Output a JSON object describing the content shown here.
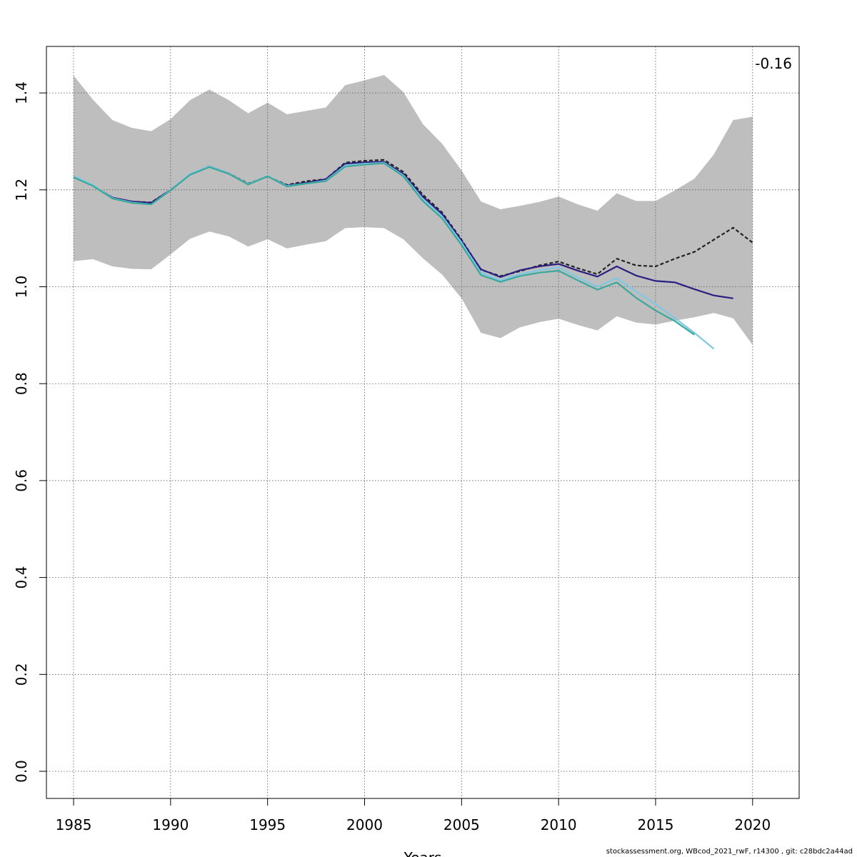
{
  "chart_data": {
    "type": "line",
    "title": "",
    "xlabel": "Years",
    "ylabel": "",
    "xlim": [
      1983.6,
      2022.4
    ],
    "ylim": [
      -0.056,
      1.496
    ],
    "x_ticks": [
      1985,
      1990,
      1995,
      2000,
      2005,
      2010,
      2015,
      2020
    ],
    "y_ticks": [
      0.0,
      0.2,
      0.4,
      0.6,
      0.8,
      1.0,
      1.2,
      1.4
    ],
    "grid": true,
    "annotation": "-0.16",
    "confidence_band": {
      "x": [
        1985,
        1986,
        1987,
        1988,
        1989,
        1990,
        1991,
        1992,
        1993,
        1994,
        1995,
        1996,
        1997,
        1998,
        1999,
        2000,
        2001,
        2002,
        2003,
        2004,
        2005,
        2006,
        2007,
        2008,
        2009,
        2010,
        2011,
        2012,
        2013,
        2014,
        2015,
        2016,
        2017,
        2018,
        2019,
        2020
      ],
      "upper": [
        1.436,
        1.386,
        1.344,
        1.328,
        1.321,
        1.346,
        1.385,
        1.407,
        1.385,
        1.358,
        1.38,
        1.356,
        1.363,
        1.37,
        1.416,
        1.426,
        1.437,
        1.402,
        1.336,
        1.295,
        1.24,
        1.176,
        1.16,
        1.167,
        1.175,
        1.186,
        1.17,
        1.157,
        1.193,
        1.177,
        1.177,
        1.199,
        1.223,
        1.273,
        1.344,
        1.351
      ],
      "lower": [
        1.053,
        1.057,
        1.042,
        1.037,
        1.036,
        1.067,
        1.099,
        1.114,
        1.104,
        1.083,
        1.098,
        1.079,
        1.087,
        1.094,
        1.121,
        1.123,
        1.121,
        1.098,
        1.059,
        1.025,
        0.976,
        0.905,
        0.894,
        0.916,
        0.927,
        0.934,
        0.921,
        0.91,
        0.939,
        0.926,
        0.922,
        0.93,
        0.937,
        0.946,
        0.935,
        0.88
      ]
    },
    "series": [
      {
        "color": "#222222",
        "dash": true,
        "x": [
          1985,
          1986,
          1987,
          1988,
          1989,
          1990,
          1991,
          1992,
          1993,
          1994,
          1995,
          1996,
          1997,
          1998,
          1999,
          2000,
          2001,
          2002,
          2003,
          2004,
          2005,
          2006,
          2007,
          2008,
          2009,
          2010,
          2011,
          2012,
          2013,
          2014,
          2015,
          2016,
          2017,
          2018,
          2019,
          2020
        ],
        "y": [
          1.226,
          1.209,
          1.184,
          1.176,
          1.174,
          1.2,
          1.232,
          1.249,
          1.234,
          1.213,
          1.228,
          1.21,
          1.218,
          1.222,
          1.256,
          1.26,
          1.262,
          1.237,
          1.19,
          1.153,
          1.097,
          1.035,
          1.022,
          1.032,
          1.044,
          1.052,
          1.038,
          1.026,
          1.058,
          1.044,
          1.042,
          1.058,
          1.072,
          1.097,
          1.122,
          1.091
        ]
      },
      {
        "color": "#2a1f82",
        "dash": false,
        "x": [
          1985,
          1986,
          1987,
          1988,
          1989,
          1990,
          1991,
          1992,
          1993,
          1994,
          1995,
          1996,
          1997,
          1998,
          1999,
          2000,
          2001,
          2002,
          2003,
          2004,
          2005,
          2006,
          2007,
          2008,
          2009,
          2010,
          2011,
          2012,
          2013,
          2014,
          2015,
          2016,
          2017,
          2018,
          2019
        ],
        "y": [
          1.226,
          1.209,
          1.184,
          1.176,
          1.173,
          1.2,
          1.232,
          1.248,
          1.234,
          1.212,
          1.228,
          1.209,
          1.215,
          1.222,
          1.254,
          1.257,
          1.258,
          1.233,
          1.186,
          1.15,
          1.095,
          1.036,
          1.02,
          1.034,
          1.042,
          1.047,
          1.033,
          1.021,
          1.042,
          1.023,
          1.012,
          1.009,
          0.995,
          0.982,
          0.976
        ]
      },
      {
        "color": "#7ec8e3",
        "dash": false,
        "x": [
          1985,
          1986,
          1987,
          1988,
          1989,
          1990,
          1991,
          1992,
          1993,
          1994,
          1995,
          1996,
          1997,
          1998,
          1999,
          2000,
          2001,
          2002,
          2003,
          2004,
          2005,
          2006,
          2007,
          2008,
          2009,
          2010,
          2011,
          2012,
          2013,
          2014,
          2015,
          2016,
          2017,
          2018
        ],
        "y": [
          1.229,
          1.21,
          1.183,
          1.174,
          1.17,
          1.2,
          1.233,
          1.249,
          1.234,
          1.212,
          1.229,
          1.208,
          1.213,
          1.219,
          1.25,
          1.254,
          1.256,
          1.23,
          1.181,
          1.145,
          1.091,
          1.029,
          1.013,
          1.026,
          1.034,
          1.04,
          1.019,
          1.0,
          1.018,
          0.99,
          0.964,
          0.935,
          0.905,
          0.872
        ]
      },
      {
        "color": "#3aa89a",
        "dash": false,
        "x": [
          1985,
          1986,
          1987,
          1988,
          1989,
          1990,
          1991,
          1992,
          1993,
          1994,
          1995,
          1996,
          1997,
          1998,
          1999,
          2000,
          2001,
          2002,
          2003,
          2004,
          2005,
          2006,
          2007,
          2008,
          2009,
          2010,
          2011,
          2012,
          2013,
          2014,
          2015,
          2016,
          2017
        ],
        "y": [
          1.226,
          1.208,
          1.182,
          1.173,
          1.17,
          1.199,
          1.231,
          1.247,
          1.233,
          1.211,
          1.228,
          1.207,
          1.213,
          1.218,
          1.248,
          1.252,
          1.255,
          1.228,
          1.177,
          1.141,
          1.086,
          1.024,
          1.01,
          1.022,
          1.029,
          1.033,
          1.013,
          0.994,
          1.009,
          0.977,
          0.951,
          0.929,
          0.901
        ]
      }
    ]
  },
  "footer": "stockassessment.org, WBcod_2021_rwF, r14300 , git: c28bdc2a44ad"
}
